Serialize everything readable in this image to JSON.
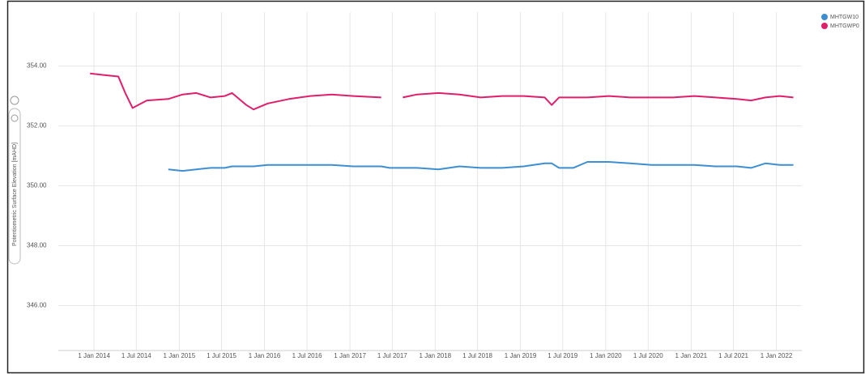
{
  "chart_data": {
    "type": "line",
    "y_label": "Potentiometric Surface Elevation [mAHD]",
    "x": [
      "2013-12-15",
      "2014-02-15",
      "2014-04-15",
      "2014-05-15",
      "2014-06-15",
      "2014-08-15",
      "2014-11-15",
      "2015-01-15",
      "2015-03-15",
      "2015-05-15",
      "2015-07-15",
      "2015-08-15",
      "2015-10-15",
      "2015-11-15",
      "2016-01-15",
      "2016-04-15",
      "2016-07-15",
      "2016-10-15",
      "2017-01-15",
      "2017-05-15",
      "2017-06-20",
      "2017-08-15",
      "2017-10-15",
      "2018-01-15",
      "2018-04-15",
      "2018-07-15",
      "2018-10-15",
      "2019-01-15",
      "2019-04-15",
      "2019-05-15",
      "2019-06-15",
      "2019-08-15",
      "2019-10-15",
      "2020-01-15",
      "2020-04-15",
      "2020-07-15",
      "2020-10-15",
      "2021-01-15",
      "2021-04-15",
      "2021-07-15",
      "2021-09-15",
      "2021-11-15",
      "2022-01-15",
      "2022-03-15"
    ],
    "series": [
      {
        "name": "MHTGW10",
        "color": "#3d8fd1",
        "values": [
          null,
          null,
          null,
          null,
          null,
          null,
          350.55,
          350.5,
          350.55,
          350.6,
          350.6,
          350.65,
          350.65,
          350.65,
          350.7,
          350.7,
          350.7,
          350.7,
          350.65,
          350.65,
          350.6,
          350.6,
          350.6,
          350.55,
          350.65,
          350.6,
          350.6,
          350.65,
          350.75,
          350.75,
          350.6,
          350.6,
          350.8,
          350.8,
          350.75,
          350.7,
          350.7,
          350.7,
          350.65,
          350.65,
          350.6,
          350.75,
          350.7,
          350.7
        ]
      },
      {
        "name": "MHTGWP0",
        "color": "#e01f6b",
        "values": [
          353.75,
          353.7,
          353.65,
          353.1,
          352.6,
          352.85,
          352.9,
          353.05,
          353.1,
          352.95,
          353.0,
          353.1,
          352.7,
          352.55,
          352.75,
          352.9,
          353.0,
          353.05,
          353.0,
          352.95,
          null,
          352.95,
          353.05,
          353.1,
          353.05,
          352.95,
          353.0,
          353.0,
          352.95,
          352.7,
          352.95,
          352.95,
          352.95,
          353.0,
          352.95,
          352.95,
          352.95,
          353.0,
          352.95,
          352.9,
          352.85,
          352.95,
          353.0,
          352.95
        ]
      }
    ],
    "xlim": [
      "2013-08-01",
      "2022-04-20"
    ],
    "xticks": [
      {
        "value": "2014-01-01",
        "label": "1 Jan 2014"
      },
      {
        "value": "2014-07-01",
        "label": "1 Jul 2014"
      },
      {
        "value": "2015-01-01",
        "label": "1 Jan 2015"
      },
      {
        "value": "2015-07-01",
        "label": "1 Jul 2015"
      },
      {
        "value": "2016-01-01",
        "label": "1 Jan 2016"
      },
      {
        "value": "2016-07-01",
        "label": "1 Jul 2016"
      },
      {
        "value": "2017-01-01",
        "label": "1 Jan 2017"
      },
      {
        "value": "2017-07-01",
        "label": "1 Jul 2017"
      },
      {
        "value": "2018-01-01",
        "label": "1 Jan 2018"
      },
      {
        "value": "2018-07-01",
        "label": "1 Jul 2018"
      },
      {
        "value": "2019-01-01",
        "label": "1 Jan 2019"
      },
      {
        "value": "2019-07-01",
        "label": "1 Jul 2019"
      },
      {
        "value": "2020-01-01",
        "label": "1 Jan 2020"
      },
      {
        "value": "2020-07-01",
        "label": "1 Jul 2020"
      },
      {
        "value": "2021-01-01",
        "label": "1 Jan 2021"
      },
      {
        "value": "2021-07-01",
        "label": "1 Jul 2021"
      },
      {
        "value": "2022-01-01",
        "label": "1 Jan 2022"
      }
    ],
    "ylim": [
      344.5,
      355.8
    ],
    "yticks": [
      {
        "value": 346,
        "label": "346.00"
      },
      {
        "value": 348,
        "label": "348.00"
      },
      {
        "value": 350,
        "label": "350.00"
      },
      {
        "value": 352,
        "label": "352.00"
      },
      {
        "value": 354,
        "label": "354.00"
      }
    ],
    "grid": true,
    "legend": "top-right"
  }
}
